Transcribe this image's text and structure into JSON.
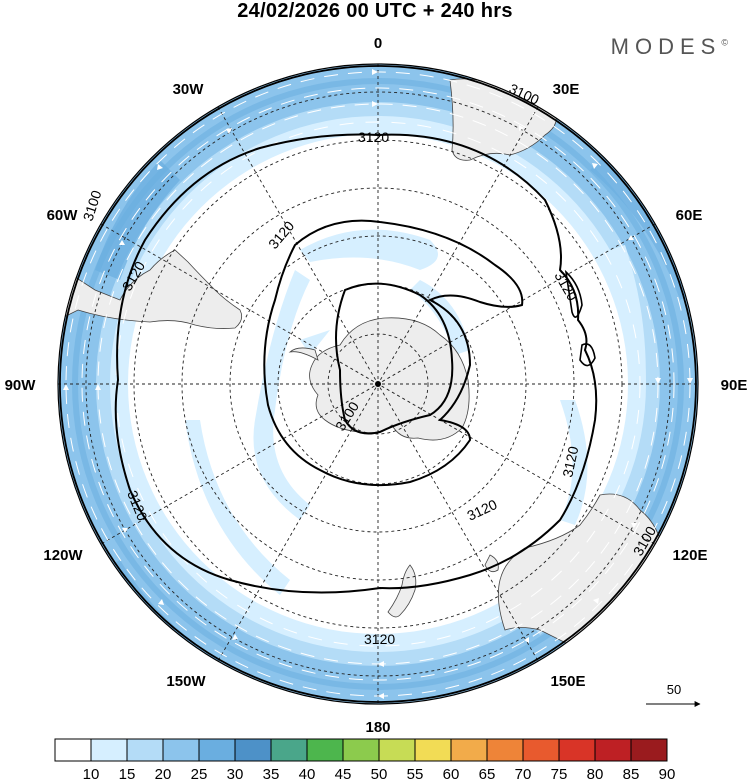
{
  "title": "24/02/2026  00 UTC  + 240 hrs",
  "brand": "MODES",
  "brand_mark": "©",
  "longitude_labels": {
    "lon_0": "0",
    "lon_30e": "30E",
    "lon_60e": "60E",
    "lon_90e": "90E",
    "lon_120e": "120E",
    "lon_150e": "150E",
    "lon_180": "180",
    "lon_150w": "150W",
    "lon_120w": "120W",
    "lon_90w": "90W",
    "lon_60w": "60W",
    "lon_30w": "30W"
  },
  "contour_labels": [
    "3100",
    "3120",
    "3120",
    "3100",
    "3120",
    "3120",
    "3120",
    "3120",
    "3100",
    "3120",
    "3100",
    "3120"
  ],
  "reference_vector": {
    "label": "50"
  },
  "colorbar": {
    "labels": [
      "10",
      "15",
      "20",
      "25",
      "30",
      "35",
      "40",
      "45",
      "50",
      "55",
      "60",
      "65",
      "70",
      "75",
      "80",
      "85",
      "90"
    ],
    "colors": [
      "#ffffff",
      "#d6efff",
      "#b4dcf7",
      "#8cc4ec",
      "#6aaee0",
      "#4d91c8",
      "#4aa68a",
      "#4db64d",
      "#8ccb4d",
      "#c7dc55",
      "#f2dc55",
      "#f2ab4a",
      "#ee8438",
      "#e85a2e",
      "#d93427",
      "#be2024",
      "#9a1b1e"
    ]
  },
  "map_layers": {
    "shading": "wind speed",
    "contours": "geopotential height",
    "vectors": "wind"
  }
}
